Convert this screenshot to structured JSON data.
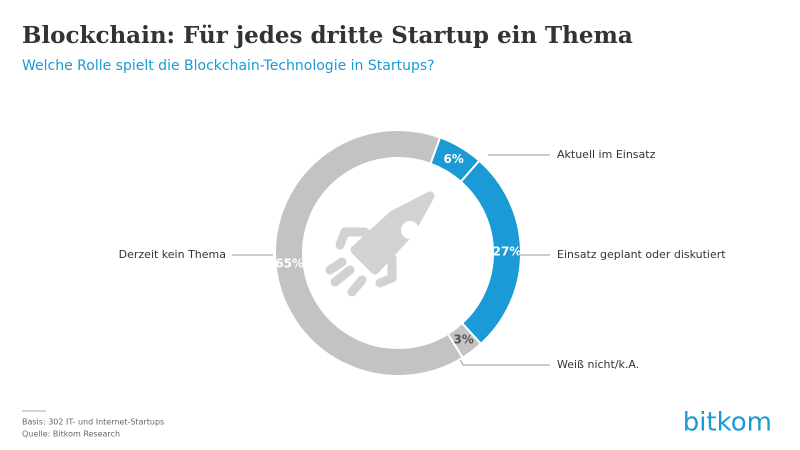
{
  "chart_data": {
    "type": "donut",
    "title": "Blockchain: Für jedes dritte Startup ein Thema",
    "subtitle": "Welche Rolle spielt die Blockchain-Technologie in Startups?",
    "categories": [
      "Aktuell im Einsatz",
      "Einsatz geplant oder diskutiert",
      "Weiß nicht/k.A.",
      "Derzeit kein Thema"
    ],
    "values": [
      6,
      27,
      3,
      65
    ],
    "value_labels": [
      "6%",
      "27%",
      "3%",
      "65%"
    ],
    "colors": [
      "#1a9ad6",
      "#1a9ad6",
      "#c3c3c3",
      "#c3c3c3"
    ],
    "notes": [
      "Basis: 302 IT- und Internet-Startups",
      "Quelle: Bitkom Research"
    ],
    "logo": "bitkom"
  }
}
